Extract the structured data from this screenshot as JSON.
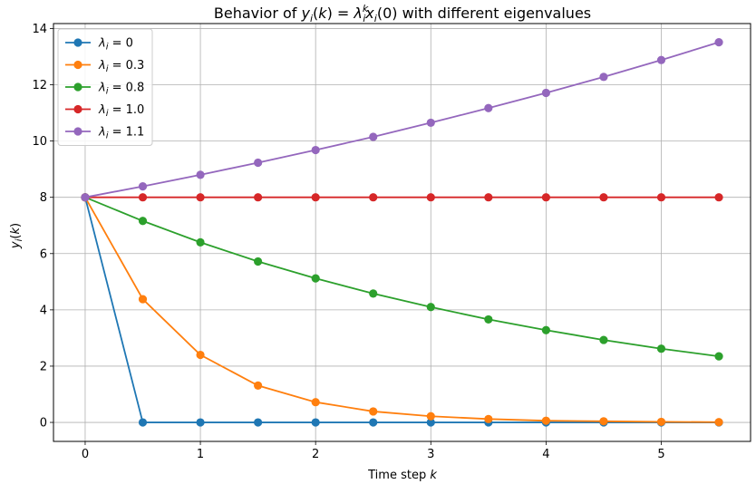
{
  "chart_data": {
    "type": "line",
    "title": {
      "prefix": "Behavior of ",
      "formula": "y_i(k) = λ_i^k x_i(0)",
      "suffix": " with different eigenvalues"
    },
    "xlabel": {
      "text": "Time step ",
      "var": "k"
    },
    "ylabel": {
      "text": "y_i(k)"
    },
    "xlim": [
      -0.275,
      5.775
    ],
    "ylim": [
      -0.675,
      14.175
    ],
    "xticks": [
      0,
      1,
      2,
      3,
      4,
      5
    ],
    "yticks": [
      0,
      2,
      4,
      6,
      8,
      10,
      12,
      14
    ],
    "grid": true,
    "legend_position": "top-left",
    "x": [
      0,
      0.5,
      1,
      1.5,
      2,
      2.5,
      3,
      3.5,
      4,
      4.5,
      5,
      5.5
    ],
    "series": [
      {
        "name": "λ_i = 0",
        "legend_sym": "λ",
        "legend_sub": "i",
        "legend_val": " = 0",
        "color": "#1f77b4",
        "values": [
          8,
          0,
          0,
          0,
          0,
          0,
          0,
          0,
          0,
          0,
          0,
          0
        ]
      },
      {
        "name": "λ_i = 0.3",
        "legend_sym": "λ",
        "legend_sub": "i",
        "legend_val": " = 0.3",
        "color": "#ff7f0e",
        "values": [
          8,
          4.38,
          2.4,
          1.31,
          0.72,
          0.39,
          0.22,
          0.12,
          0.06,
          0.04,
          0.02,
          0.01
        ]
      },
      {
        "name": "λ_i = 0.8",
        "legend_sym": "λ",
        "legend_sub": "i",
        "legend_val": " = 0.8",
        "color": "#2ca02c",
        "values": [
          8,
          7.16,
          6.4,
          5.72,
          5.12,
          4.58,
          4.1,
          3.66,
          3.28,
          2.93,
          2.62,
          2.35
        ]
      },
      {
        "name": "λ_i = 1.0",
        "legend_sym": "λ",
        "legend_sub": "i",
        "legend_val": " = 1.0",
        "color": "#d62728",
        "values": [
          8,
          8,
          8,
          8,
          8,
          8,
          8,
          8,
          8,
          8,
          8,
          8
        ]
      },
      {
        "name": "λ_i = 1.1",
        "legend_sym": "λ",
        "legend_sub": "i",
        "legend_val": " = 1.1",
        "color": "#9467bd",
        "values": [
          8,
          8.39,
          8.8,
          9.23,
          9.68,
          10.15,
          10.65,
          11.17,
          11.71,
          12.28,
          12.88,
          13.51
        ]
      }
    ]
  }
}
